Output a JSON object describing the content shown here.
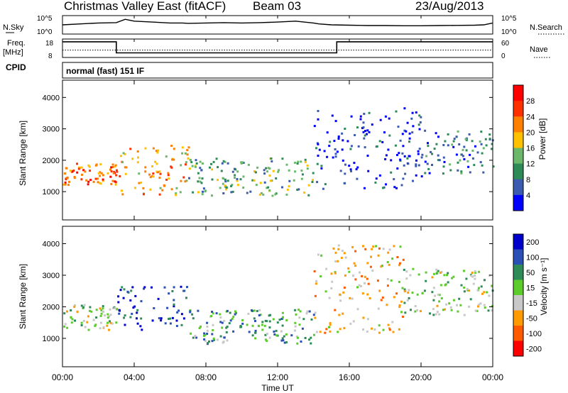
{
  "header": {
    "title": "Christmas Valley East (fitACF)",
    "beam": "Beam 03",
    "date": "23/Aug/2013"
  },
  "side_labels": {
    "nsky": "N.Sky",
    "nsearch": "N.Search",
    "freq_line1": "Freq.",
    "freq_line2": "[MHz]",
    "nave": "Nave",
    "cpid": "CPID",
    "cpid_value": "normal (fast) 151 IF"
  },
  "colors": {
    "power_scale": [
      "#0000ff",
      "#3a5bb0",
      "#2e8b57",
      "#6bb86b",
      "#ffc000",
      "#ff8000",
      "#ff3000",
      "#ff0000"
    ],
    "velocity_scale": [
      "#0000cc",
      "#2a4fb5",
      "#2e8b57",
      "#5ccc2a",
      "#c8c8c8",
      "#ff9a00",
      "#ff5a00",
      "#ff0000"
    ]
  },
  "chart_data": [
    {
      "type": "line",
      "name": "noise",
      "ylabel_left": "N.Sky",
      "ylabel_right": "N.Search",
      "y_ticks_left": [
        "10^5",
        "10^0"
      ],
      "y_ticks_right": [
        "10^5",
        "10^0"
      ],
      "series": [
        {
          "x_hours": [
            0,
            1,
            2,
            3,
            3.5,
            4,
            5,
            6,
            6.7,
            7,
            8,
            9,
            10,
            11,
            12,
            13,
            14,
            14.3,
            15,
            16,
            17,
            18,
            19,
            20,
            21,
            22,
            23,
            23.5,
            24
          ],
          "values": [
            0.5,
            0.55,
            0.6,
            0.62,
            0.8,
            0.7,
            0.65,
            0.6,
            0.6,
            0.58,
            0.6,
            0.62,
            0.6,
            0.62,
            0.65,
            0.7,
            0.6,
            0.55,
            0.5,
            0.48,
            0.46,
            0.46,
            0.45,
            0.45,
            0.46,
            0.47,
            0.48,
            0.5,
            0.6
          ]
        }
      ]
    },
    {
      "type": "line",
      "name": "frequency-nave",
      "ylabel_left": "Freq. [MHz]",
      "ylabel_right": "Nave",
      "y_ticks_left": [
        "18",
        "8"
      ],
      "y_ticks_right": [
        "60",
        "0"
      ],
      "series": [
        {
          "x_hours": [
            0,
            3,
            3,
            15.3,
            15.3,
            24
          ],
          "values": [
            0.85,
            0.85,
            0.25,
            0.25,
            0.85,
            0.85
          ]
        },
        {
          "x_hours": [
            0,
            24
          ],
          "values": [
            0.4,
            0.4
          ]
        }
      ]
    },
    {
      "type": "heatmap",
      "name": "power",
      "ylabel": "Slant Range [km]",
      "y_ticks": [
        1000,
        2000,
        3000,
        4000
      ],
      "ylim": [
        100,
        4550
      ],
      "colorbar_label": "Power [dB]",
      "colorbar_ticks": [
        4,
        8,
        12,
        16,
        20,
        24,
        28
      ]
    },
    {
      "type": "heatmap",
      "name": "velocity",
      "ylabel": "Slant Range [km]",
      "y_ticks": [
        1000,
        2000,
        3000,
        4000
      ],
      "ylim": [
        100,
        4550
      ],
      "colorbar_label": "Velocity [m s⁻¹]",
      "colorbar_ticks": [
        200,
        100,
        50,
        15,
        -15,
        -50,
        -100,
        -200
      ]
    }
  ],
  "x_axis": {
    "label": "Time UT",
    "ticks": [
      "00:00",
      "04:00",
      "08:00",
      "12:00",
      "16:00",
      "20:00",
      "00:00"
    ],
    "range_hours": [
      0,
      24
    ]
  }
}
